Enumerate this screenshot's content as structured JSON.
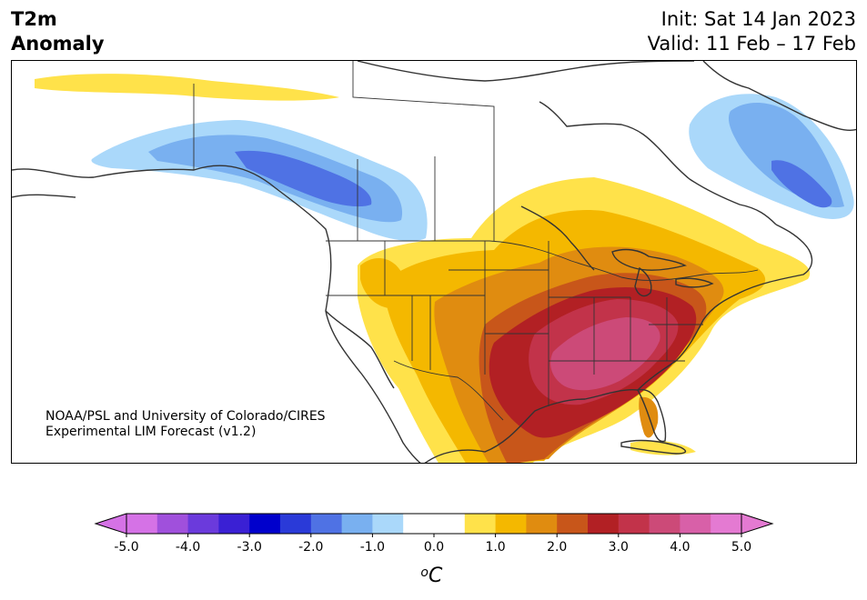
{
  "header": {
    "variable": "T2m",
    "subtitle": "Anomaly",
    "init": "Init: Sat 14 Jan 2023",
    "valid": "Valid: 11 Feb – 17 Feb"
  },
  "credit": {
    "line1": "NOAA/PSL and University of Colorado/CIRES",
    "line2": "Experimental LIM Forecast (v1.2)"
  },
  "colorbar": {
    "unit_base": "o",
    "unit": "C",
    "ticks": [
      "-5.0",
      "-4.0",
      "-3.0",
      "-2.0",
      "-1.0",
      "0.0",
      "1.0",
      "2.0",
      "3.0",
      "4.0",
      "5.0"
    ],
    "colors": [
      "#d572e6",
      "#a050dc",
      "#6b3adc",
      "#3a20d4",
      "#0000cc",
      "#2a3ad8",
      "#4f72e4",
      "#79b0f0",
      "#aad8fa",
      "#ffffff",
      "#ffffff",
      "#ffe24a",
      "#f4b800",
      "#e08c10",
      "#c8561a",
      "#b22024",
      "#c2334a",
      "#cc4a78",
      "#d860a8",
      "#e47ad2"
    ],
    "under_color": "#d572e6",
    "over_color": "#e47ad2"
  }
}
